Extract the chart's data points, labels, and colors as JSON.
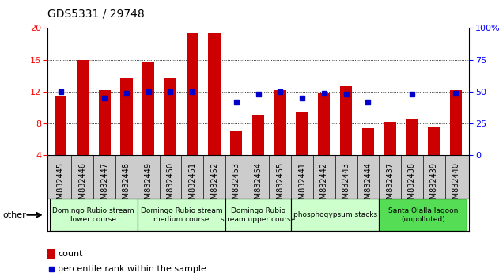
{
  "title": "GDS5331 / 29748",
  "samples": [
    "GSM832445",
    "GSM832446",
    "GSM832447",
    "GSM832448",
    "GSM832449",
    "GSM832450",
    "GSM832451",
    "GSM832452",
    "GSM832453",
    "GSM832454",
    "GSM832455",
    "GSM832441",
    "GSM832442",
    "GSM832443",
    "GSM832444",
    "GSM832437",
    "GSM832438",
    "GSM832439",
    "GSM832440"
  ],
  "counts": [
    11.5,
    16.0,
    12.2,
    13.8,
    15.7,
    13.8,
    19.3,
    19.3,
    7.1,
    9.0,
    12.2,
    9.5,
    11.8,
    12.7,
    7.4,
    8.2,
    8.6,
    7.6,
    12.2
  ],
  "pct_values": [
    50,
    null,
    45,
    49,
    50,
    50,
    50,
    null,
    42,
    48,
    50,
    45,
    49,
    48,
    42,
    null,
    48,
    null,
    49
  ],
  "bar_color": "#cc0000",
  "pct_color": "#0000cc",
  "ylim_left": [
    4,
    20
  ],
  "ylim_right": [
    0,
    100
  ],
  "yticks_left": [
    4,
    8,
    12,
    16,
    20
  ],
  "yticks_right": [
    0,
    25,
    50,
    75,
    100
  ],
  "grid_lines": [
    8,
    12,
    16
  ],
  "groups": [
    {
      "label": "Domingo Rubio stream\nlower course",
      "start": 0,
      "end": 3,
      "color": "#ccffcc"
    },
    {
      "label": "Domingo Rubio stream\nmedium course",
      "start": 4,
      "end": 7,
      "color": "#ccffcc"
    },
    {
      "label": "Domingo Rubio\nstream upper course",
      "start": 8,
      "end": 10,
      "color": "#ccffcc"
    },
    {
      "label": "phosphogypsum stacks",
      "start": 11,
      "end": 14,
      "color": "#ccffcc"
    },
    {
      "label": "Santa Olalla lagoon\n(unpolluted)",
      "start": 15,
      "end": 18,
      "color": "#55dd55"
    }
  ],
  "bar_width": 0.55,
  "legend_count_label": "count",
  "legend_pct_label": "percentile rank within the sample",
  "other_label": "other",
  "title_fontsize": 10,
  "axis_fontsize": 8,
  "tick_fontsize": 7,
  "group_fontsize": 6.5,
  "legend_fontsize": 8,
  "xtick_bg": "#cccccc"
}
